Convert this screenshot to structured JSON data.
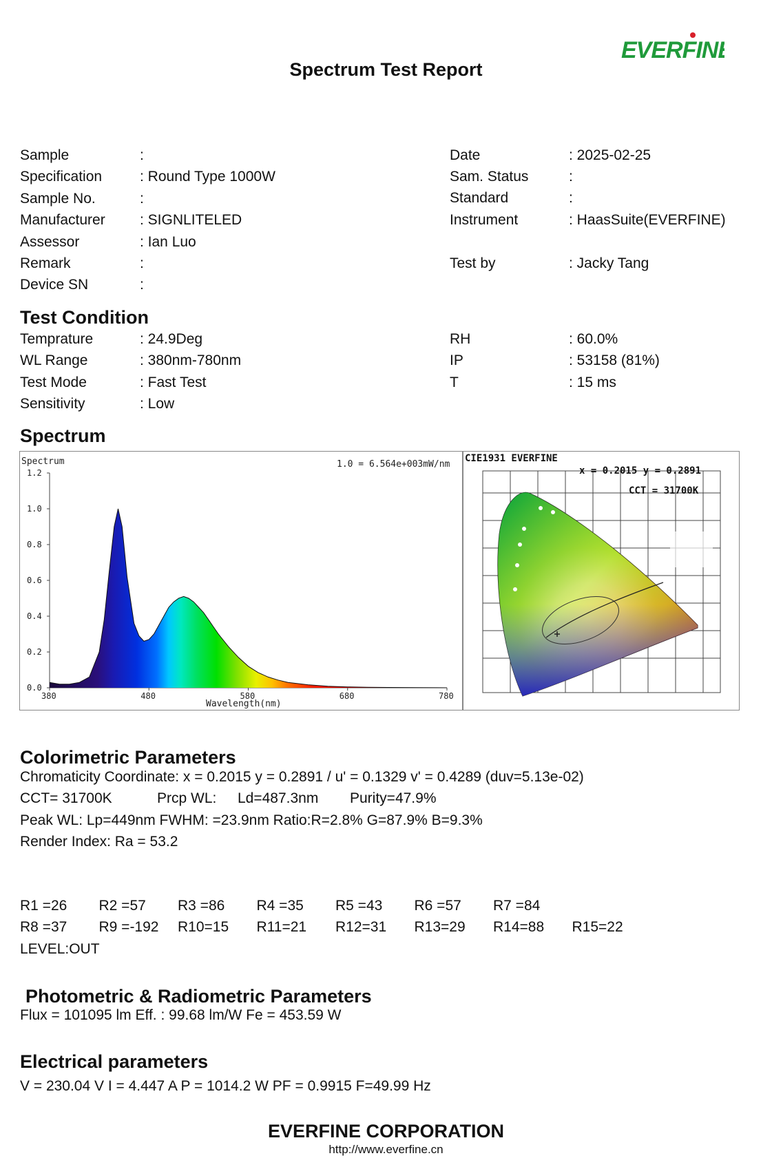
{
  "header": {
    "title": "Spectrum Test Report",
    "logo_text": "EVERFINE",
    "logo_color": "#1f9a3a",
    "logo_dot_color": "#d8202a"
  },
  "info_left": [
    {
      "label": "Sample",
      "value": ":"
    },
    {
      "label": "Specification",
      "value": ": Round Type 1000W"
    },
    {
      "label": "Sample No.",
      "value": ":"
    },
    {
      "label": "Manufacturer",
      "value": ": SIGNLITELED"
    },
    {
      "label": "Assessor",
      "value": ": Ian Luo"
    },
    {
      "label": "Remark",
      "value": ":"
    },
    {
      "label": "Device SN",
      "value": ":"
    }
  ],
  "info_right": [
    {
      "label": "Date",
      "value": ": 2025-02-25"
    },
    {
      "label": "Sam. Status",
      "value": ":"
    },
    {
      "label": "Standard",
      "value": ":"
    },
    {
      "label": "Instrument",
      "value": ": HaasSuite(EVERFINE)"
    },
    {
      "label": "Test by",
      "value": ": Jacky Tang"
    }
  ],
  "test_condition": {
    "heading": "Test Condition",
    "left": [
      {
        "label": "Temprature",
        "value": ": 24.9Deg"
      },
      {
        "label": "WL Range",
        "value": ": 380nm-780nm"
      },
      {
        "label": "Test Mode",
        "value": ": Fast Test"
      },
      {
        "label": "Sensitivity",
        "value": ": Low"
      }
    ],
    "right": [
      {
        "label": "RH",
        "value": ": 60.0%"
      },
      {
        "label": "IP",
        "value": ": 53158 (81%)"
      },
      {
        "label": "T",
        "value": ": 15 ms"
      }
    ]
  },
  "spectrum": {
    "heading": "Spectrum",
    "chart_title": "Spectrum",
    "scale_note": "1.0 = 6.564e+003mW/nm",
    "xlabel": "Wavelength(nm)",
    "x_ticks": [
      "380",
      "480",
      "580",
      "680",
      "780"
    ],
    "y_ticks": [
      "0.0",
      "0.2",
      "0.4",
      "0.6",
      "0.8",
      "1.0",
      "1.2"
    ]
  },
  "chart_data": {
    "type": "area",
    "title": "Spectrum",
    "xlabel": "Wavelength(nm)",
    "ylabel": "",
    "xlim": [
      380,
      780
    ],
    "ylim": [
      0,
      1.2
    ],
    "x": [
      380,
      390,
      400,
      410,
      420,
      430,
      435,
      440,
      445,
      449,
      453,
      458,
      465,
      470,
      475,
      480,
      485,
      490,
      495,
      500,
      505,
      510,
      515,
      520,
      525,
      530,
      535,
      540,
      545,
      550,
      560,
      570,
      580,
      590,
      600,
      610,
      620,
      640,
      660,
      680,
      700,
      720,
      750,
      780
    ],
    "values": [
      0.03,
      0.02,
      0.02,
      0.03,
      0.06,
      0.2,
      0.38,
      0.65,
      0.9,
      1.0,
      0.9,
      0.62,
      0.36,
      0.29,
      0.26,
      0.27,
      0.3,
      0.35,
      0.4,
      0.45,
      0.48,
      0.5,
      0.51,
      0.5,
      0.48,
      0.45,
      0.42,
      0.38,
      0.34,
      0.3,
      0.23,
      0.17,
      0.12,
      0.085,
      0.06,
      0.043,
      0.03,
      0.017,
      0.009,
      0.005,
      0.003,
      0.002,
      0.001,
      0.0
    ]
  },
  "cie": {
    "title": "CIE1931   EVERFINE",
    "xy_readout": "x = 0.2015  y = 0.2891",
    "cct_readout": "CCT = 31700K"
  },
  "colorimetric": {
    "heading": "Colorimetric Parameters",
    "line1": "Chromaticity Coordinate: x = 0.2015 y = 0.2891 / u' = 0.1329 v' = 0.4289 (duv=5.13e-02)",
    "cct": "CCT= 31700K",
    "prcp": "Prcp WL:",
    "ld": "Ld=487.3nm",
    "purity": "Purity=47.9%",
    "peak": "Peak WL:  Lp=449nm  FWHM:   =23.9nm  Ratio:R=2.8% G=87.9% B=9.3%",
    "render": "Render Index: Ra = 53.2"
  },
  "r_values": {
    "row1": [
      "R1 =26",
      "R2 =57",
      "R3 =86",
      "R4 =35",
      "R5 =43",
      "R6 =57",
      "R7 =84"
    ],
    "row2": [
      "R8 =37",
      "R9 =-192",
      "R10=15",
      "R11=21",
      "R12=31",
      "R13=29",
      "R14=88",
      "R15=22"
    ],
    "level": "LEVEL:OUT"
  },
  "photometric": {
    "heading": "Photometric & Radiometric Parameters",
    "line": "Flux  = 101095 lm   Eff. : 99.68 lm/W  Fe  = 453.59 W"
  },
  "electrical": {
    "heading": "Electrical parameters",
    "line": "V = 230.04 V     I = 4.447 A    P = 1014.2 W PF = 0.9915 F=49.99 Hz"
  },
  "footer": {
    "company": "EVERFINE CORPORATION",
    "url": "http://www.everfine.cn"
  }
}
